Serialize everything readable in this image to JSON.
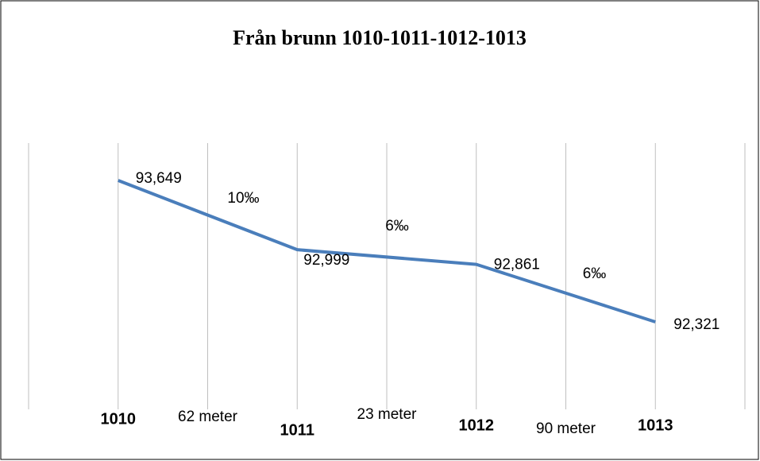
{
  "chart_data": {
    "type": "line",
    "title": "Från brunn 1010-1011-1012-1013",
    "categories": [
      "1010",
      "1011",
      "1012",
      "1013"
    ],
    "values": [
      93.649,
      92.999,
      92.861,
      92.321
    ],
    "value_labels": [
      "93,649",
      "92,999",
      "92,861",
      "92,321"
    ],
    "color": "#4a7ebb",
    "ylim": [
      91.5,
      94.0
    ],
    "grid": true,
    "segments": [
      {
        "length": "62 meter",
        "slope": "10‰"
      },
      {
        "length": "23 meter",
        "slope": "6‰"
      },
      {
        "length": "90 meter",
        "slope": "6‰"
      }
    ]
  }
}
